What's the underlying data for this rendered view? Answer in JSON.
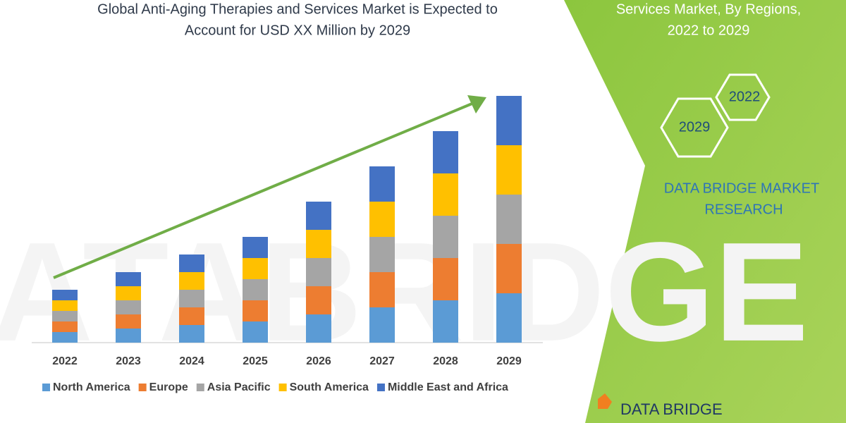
{
  "chart_data": {
    "type": "bar",
    "stacked": true,
    "title_lines": [
      "Global Anti-Aging Therapies and Services Market is Expected to",
      "Account for USD XX Million by 2029"
    ],
    "categories": [
      "2022",
      "2023",
      "2024",
      "2025",
      "2026",
      "2027",
      "2028",
      "2029"
    ],
    "series": [
      {
        "name": "North America",
        "color": "#5b9bd5",
        "values": [
          3,
          4,
          5,
          6,
          8,
          10,
          12,
          14
        ]
      },
      {
        "name": "Europe",
        "color": "#ed7d31",
        "values": [
          3,
          4,
          5,
          6,
          8,
          10,
          12,
          14
        ]
      },
      {
        "name": "Asia Pacific",
        "color": "#a5a5a5",
        "values": [
          3,
          4,
          5,
          6,
          8,
          10,
          12,
          14
        ]
      },
      {
        "name": "South America",
        "color": "#ffc000",
        "values": [
          3,
          4,
          5,
          6,
          8,
          10,
          12,
          14
        ]
      },
      {
        "name": "Middle East and Africa",
        "color": "#4472c4",
        "values": [
          3,
          4,
          5,
          6,
          8,
          10,
          12,
          14
        ]
      }
    ],
    "ylim": [
      0,
      70
    ]
  },
  "panel": {
    "heading_lines": [
      "Services Market, By Regions,",
      "2022 to 2029"
    ],
    "hexagons": [
      "2022",
      "2029"
    ],
    "brand_lines": [
      "DATA BRIDGE MARKET",
      "RESEARCH"
    ]
  },
  "logo": "DATA BRIDGE"
}
